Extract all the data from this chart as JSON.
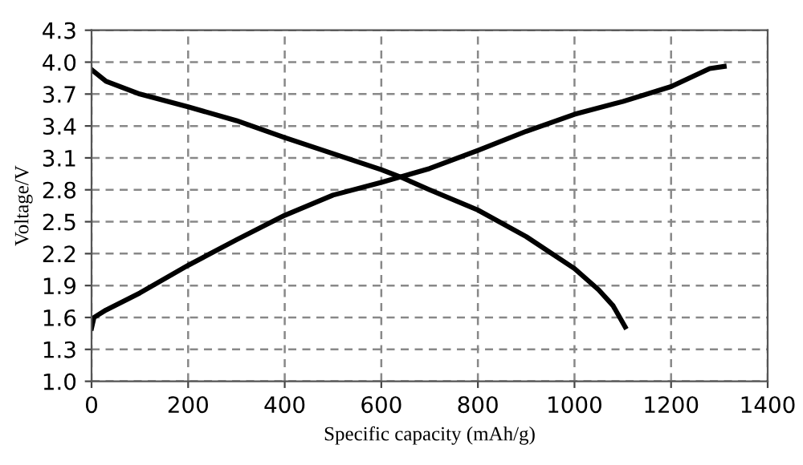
{
  "chart_data": {
    "type": "line",
    "xlabel": "Specific capacity (mAh/g)",
    "ylabel": "Voltage/V",
    "xlim": [
      0,
      1400
    ],
    "xticks": [
      0,
      200,
      400,
      600,
      800,
      1000,
      1200,
      1400
    ],
    "ylim": [
      1.0,
      4.3
    ],
    "yticks": [
      {
        "value": 1.0,
        "label": "1.0"
      },
      {
        "value": 1.3,
        "label": "1.3"
      },
      {
        "value": 1.6,
        "label": "1.6"
      },
      {
        "value": 1.9,
        "label": "1.9"
      },
      {
        "value": 2.2,
        "label": "2.2"
      },
      {
        "value": 2.5,
        "label": "2.5"
      },
      {
        "value": 2.8,
        "label": "2.8"
      },
      {
        "value": 3.1,
        "label": "3.1"
      },
      {
        "value": 3.4,
        "label": "3.4"
      },
      {
        "value": 3.7,
        "label": "3.7"
      },
      {
        "value": 4.0,
        "label": "4.0"
      },
      {
        "value": 4.3,
        "label": "4.3"
      }
    ],
    "grid": true,
    "legend": false,
    "marker": "none",
    "line_style": "solid",
    "series": [
      {
        "color": "#000000",
        "x": [
          0,
          30,
          100,
          200,
          300,
          400,
          500,
          600,
          640,
          700,
          800,
          900,
          1000,
          1050,
          1080,
          1105
        ],
        "values": [
          3.93,
          3.82,
          3.7,
          3.58,
          3.45,
          3.29,
          3.14,
          2.99,
          2.92,
          2.8,
          2.61,
          2.36,
          2.06,
          1.86,
          1.71,
          1.51
        ]
      },
      {
        "color": "#000000",
        "x": [
          0,
          5,
          30,
          100,
          200,
          300,
          400,
          500,
          600,
          700,
          800,
          900,
          1000,
          1100,
          1200,
          1280,
          1310
        ],
        "values": [
          1.5,
          1.6,
          1.67,
          1.83,
          2.09,
          2.33,
          2.56,
          2.75,
          2.87,
          3.0,
          3.17,
          3.35,
          3.51,
          3.63,
          3.77,
          3.94,
          3.96
        ]
      }
    ]
  }
}
